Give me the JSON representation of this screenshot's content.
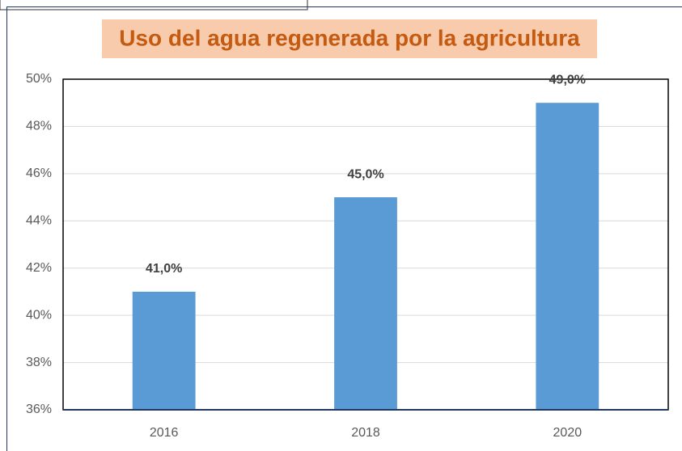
{
  "chart_data": {
    "type": "bar",
    "title": "Uso del agua regenerada por la agricultura",
    "categories": [
      "2016",
      "2018",
      "2020"
    ],
    "values": [
      41,
      45,
      49
    ],
    "value_labels": [
      "41,0%",
      "45,0%",
      "49,0%"
    ],
    "color": "#5b9bd5",
    "ylim": [
      36,
      50
    ],
    "yticks": [
      {
        "value": 36,
        "label": "36%"
      },
      {
        "value": 38,
        "label": "38%"
      },
      {
        "value": 40,
        "label": "40%"
      },
      {
        "value": 42,
        "label": "42%"
      },
      {
        "value": 44,
        "label": "44%"
      },
      {
        "value": 46,
        "label": "46%"
      },
      {
        "value": 48,
        "label": "48%"
      },
      {
        "value": 50,
        "label": "50%"
      }
    ],
    "grid": true
  }
}
